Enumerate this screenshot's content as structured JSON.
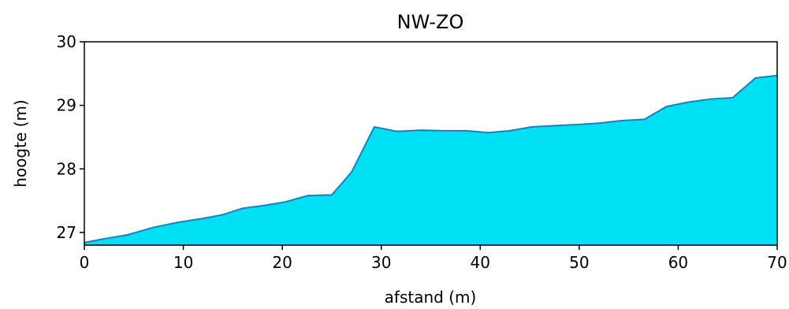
{
  "chart_data": {
    "type": "area",
    "title": "NW-ZO",
    "xlabel": "afstand (m)",
    "ylabel": "hoogte (m)",
    "xlim": [
      0,
      70
    ],
    "ylim": [
      26.8,
      30
    ],
    "xticks": [
      0,
      10,
      20,
      30,
      40,
      50,
      60,
      70
    ],
    "yticks": [
      27,
      28,
      29,
      30
    ],
    "xtick_labels": [
      "0",
      "10",
      "20",
      "30",
      "40",
      "50",
      "60",
      "70"
    ],
    "ytick_labels": [
      "27",
      "28",
      "29",
      "30"
    ],
    "grid": false,
    "fill_color": "#00e0f4",
    "line_color": "#1f7fb4",
    "series": [
      {
        "x": [
          0,
          2,
          4.3,
          7,
          9.5,
          12,
          14,
          16,
          18,
          20.3,
          22.6,
          25,
          27,
          29.3,
          31.6,
          34,
          36.3,
          38.6,
          40.8,
          43,
          45.2,
          47.6,
          50,
          52,
          54.3,
          56.6,
          58.8,
          61,
          63.3,
          65.5,
          67.8,
          70
        ],
        "y": [
          26.84,
          26.9,
          26.96,
          27.08,
          27.16,
          27.22,
          27.28,
          27.38,
          27.42,
          27.48,
          27.58,
          27.59,
          27.95,
          28.66,
          28.59,
          28.61,
          28.6,
          28.6,
          28.57,
          28.6,
          28.66,
          28.68,
          28.7,
          28.72,
          28.76,
          28.78,
          28.98,
          29.05,
          29.1,
          29.12,
          29.43,
          29.47
        ]
      }
    ]
  }
}
